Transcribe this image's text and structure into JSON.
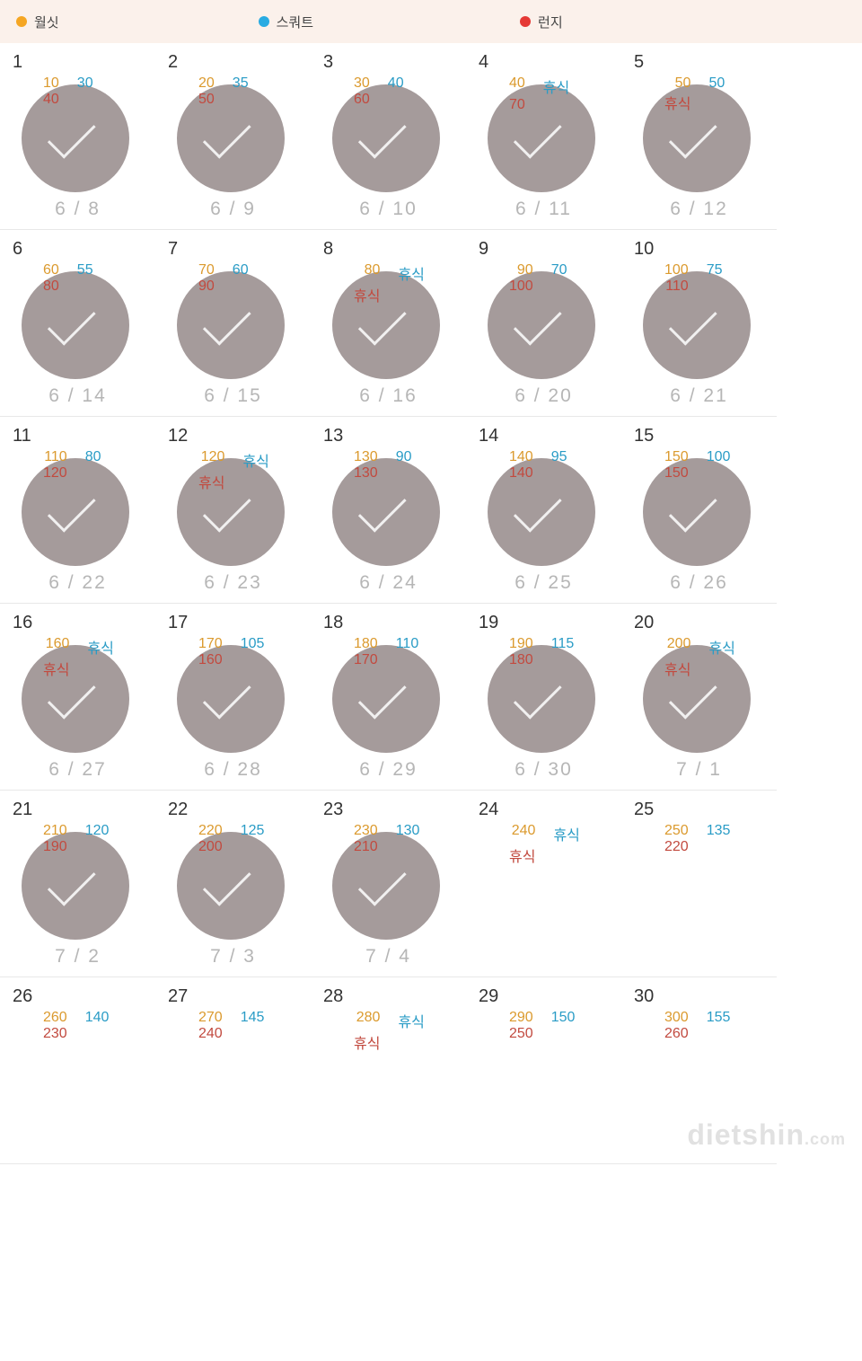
{
  "legend": [
    {
      "label": "월싯",
      "color": "#f5a623"
    },
    {
      "label": "스쿼트",
      "color": "#29abe2"
    },
    {
      "label": "런지",
      "color": "#e53935"
    }
  ],
  "value_colors": {
    "v1": "#db9a2e",
    "v2": "#2a9cc6",
    "v3": "#c24a3f"
  },
  "circle_color": "#a59b9b",
  "legend_bg": "#fbf1eb",
  "cells": [
    {
      "n": "1",
      "v1": "10",
      "v2": "30",
      "v3": "40",
      "date": "6 / 8",
      "done": true
    },
    {
      "n": "2",
      "v1": "20",
      "v2": "35",
      "v3": "50",
      "date": "6 / 9",
      "done": true
    },
    {
      "n": "3",
      "v1": "30",
      "v2": "40",
      "v3": "60",
      "date": "6 / 10",
      "done": true
    },
    {
      "n": "4",
      "v1": "40",
      "v2": "휴식",
      "v3": "70",
      "date": "6 / 11",
      "done": true
    },
    {
      "n": "5",
      "v1": "50",
      "v2": "50",
      "v3": "휴식",
      "date": "6 / 12",
      "done": true
    },
    {
      "n": "6",
      "v1": "60",
      "v2": "55",
      "v3": "80",
      "date": "6 / 14",
      "done": true
    },
    {
      "n": "7",
      "v1": "70",
      "v2": "60",
      "v3": "90",
      "date": "6 / 15",
      "done": true
    },
    {
      "n": "8",
      "v1": "80",
      "v2": "휴식",
      "v3": "휴식",
      "date": "6 / 16",
      "done": true
    },
    {
      "n": "9",
      "v1": "90",
      "v2": "70",
      "v3": "100",
      "date": "6 / 20",
      "done": true
    },
    {
      "n": "10",
      "v1": "100",
      "v2": "75",
      "v3": "110",
      "date": "6 / 21",
      "done": true
    },
    {
      "n": "11",
      "v1": "110",
      "v2": "80",
      "v3": "120",
      "date": "6 / 22",
      "done": true
    },
    {
      "n": "12",
      "v1": "120",
      "v2": "휴식",
      "v3": "휴식",
      "date": "6 / 23",
      "done": true
    },
    {
      "n": "13",
      "v1": "130",
      "v2": "90",
      "v3": "130",
      "date": "6 / 24",
      "done": true
    },
    {
      "n": "14",
      "v1": "140",
      "v2": "95",
      "v3": "140",
      "date": "6 / 25",
      "done": true
    },
    {
      "n": "15",
      "v1": "150",
      "v2": "100",
      "v3": "150",
      "date": "6 / 26",
      "done": true
    },
    {
      "n": "16",
      "v1": "160",
      "v2": "휴식",
      "v3": "휴식",
      "date": "6 / 27",
      "done": true
    },
    {
      "n": "17",
      "v1": "170",
      "v2": "105",
      "v3": "160",
      "date": "6 / 28",
      "done": true
    },
    {
      "n": "18",
      "v1": "180",
      "v2": "110",
      "v3": "170",
      "date": "6 / 29",
      "done": true
    },
    {
      "n": "19",
      "v1": "190",
      "v2": "115",
      "v3": "180",
      "date": "6 / 30",
      "done": true
    },
    {
      "n": "20",
      "v1": "200",
      "v2": "휴식",
      "v3": "휴식",
      "date": "7 / 1",
      "done": true
    },
    {
      "n": "21",
      "v1": "210",
      "v2": "120",
      "v3": "190",
      "date": "7 / 2",
      "done": true
    },
    {
      "n": "22",
      "v1": "220",
      "v2": "125",
      "v3": "200",
      "date": "7 / 3",
      "done": true
    },
    {
      "n": "23",
      "v1": "230",
      "v2": "130",
      "v3": "210",
      "date": "7 / 4",
      "done": true
    },
    {
      "n": "24",
      "v1": "240",
      "v2": "휴식",
      "v3": "휴식",
      "date": "",
      "done": false
    },
    {
      "n": "25",
      "v1": "250",
      "v2": "135",
      "v3": "220",
      "date": "",
      "done": false
    },
    {
      "n": "26",
      "v1": "260",
      "v2": "140",
      "v3": "230",
      "date": "",
      "done": false
    },
    {
      "n": "27",
      "v1": "270",
      "v2": "145",
      "v3": "240",
      "date": "",
      "done": false
    },
    {
      "n": "28",
      "v1": "280",
      "v2": "휴식",
      "v3": "휴식",
      "date": "",
      "done": false
    },
    {
      "n": "29",
      "v1": "290",
      "v2": "150",
      "v3": "250",
      "date": "",
      "done": false
    },
    {
      "n": "30",
      "v1": "300",
      "v2": "155",
      "v3": "260",
      "date": "",
      "done": false
    }
  ],
  "watermark": {
    "main": "dietshin",
    "suffix": ".com"
  }
}
